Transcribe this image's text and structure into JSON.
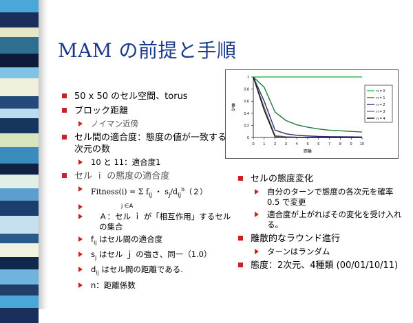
{
  "title": "MAM の前提と手順",
  "left": {
    "items": [
      {
        "text": "50 x 50 のセル空間、torus"
      },
      {
        "text": "ブロック距離"
      },
      {
        "text": "ノイマン近傍"
      },
      {
        "text": "セル間の適合度：態度の値が一致する次元の数"
      },
      {
        "text": "10 と 11：適合度1"
      },
      {
        "text": "セル ｉ の態度の適合度"
      }
    ],
    "formula": {
      "main": "Fitness(i) = Σ f",
      "sub1": "ij",
      "mid": " ・ s",
      "sub2": "j",
      "mid2": "/d",
      "sub3": "ij",
      "sup3": "n",
      "tail": "（２）",
      "under": "j ∈A"
    },
    "subitems": [
      {
        "text": "Ａ：セル ｉ が「相互作用」するセルの集合"
      },
      {
        "pre": "f",
        "sub": "ij",
        "text": " はセル間の適合度"
      },
      {
        "pre": "s",
        "sub": "j",
        "text": " はセル ｊ の強さ、同一（1.0）"
      },
      {
        "pre": "d",
        "sub": "ij",
        "text": " はセル間の距離である."
      },
      {
        "text": "n：距離係数"
      }
    ]
  },
  "right": {
    "items": [
      {
        "text": "セルの態度変化"
      },
      {
        "text": "自分のターンで態度の各次元を確率 0.5 で変更"
      },
      {
        "text": "適合度が上がればその変化を受け入れる。"
      },
      {
        "text": "離散的なラウンド進行"
      },
      {
        "text": "ターンはランダム"
      },
      {
        "text": "態度：2次元、4種類 (00/01/10/11)"
      }
    ]
  },
  "colors": {
    "title": "#1a3a8a",
    "bullet": "#cc1f1f"
  },
  "chart_data": {
    "type": "line",
    "xlabel": "距離",
    "ylabel": "重み",
    "x": [
      0,
      1,
      2,
      3,
      4,
      5,
      6,
      7,
      8,
      9,
      10
    ],
    "x_ticks": [
      "0",
      "1",
      "2",
      "3",
      "4",
      "5",
      "6",
      "7",
      "8",
      "9",
      "10"
    ],
    "y_ticks": [
      "0",
      "0.2",
      "0.4",
      "0.6",
      "0.8",
      "1"
    ],
    "ylim": [
      0,
      1
    ],
    "legend_position": "right",
    "series": [
      {
        "name": "n = 0",
        "color": "#33bb55",
        "values": [
          1,
          1,
          1,
          1,
          1,
          1,
          1,
          1,
          1,
          1,
          1
        ]
      },
      {
        "name": "n = 1",
        "color": "#1f7a3a",
        "values": [
          1,
          0.83,
          0.42,
          0.28,
          0.21,
          0.17,
          0.14,
          0.12,
          0.11,
          0.1,
          0.09
        ]
      },
      {
        "name": "n = 2",
        "color": "#2b2f7a",
        "values": [
          1,
          0.6,
          0.12,
          0.06,
          0.035,
          0.025,
          0.018,
          0.014,
          0.012,
          0.01,
          0.008
        ]
      },
      {
        "name": "n = 3",
        "color": "#777777",
        "values": [
          1,
          0.5,
          0.03,
          0.012,
          0.005,
          0.003,
          0.002,
          0.001,
          0.001,
          0.001,
          0.001
        ]
      },
      {
        "name": "n = 4",
        "color": "#111111",
        "values": [
          1,
          0.45,
          0.01,
          0.003,
          0.001,
          0,
          0,
          0,
          0,
          0,
          0
        ]
      }
    ]
  }
}
